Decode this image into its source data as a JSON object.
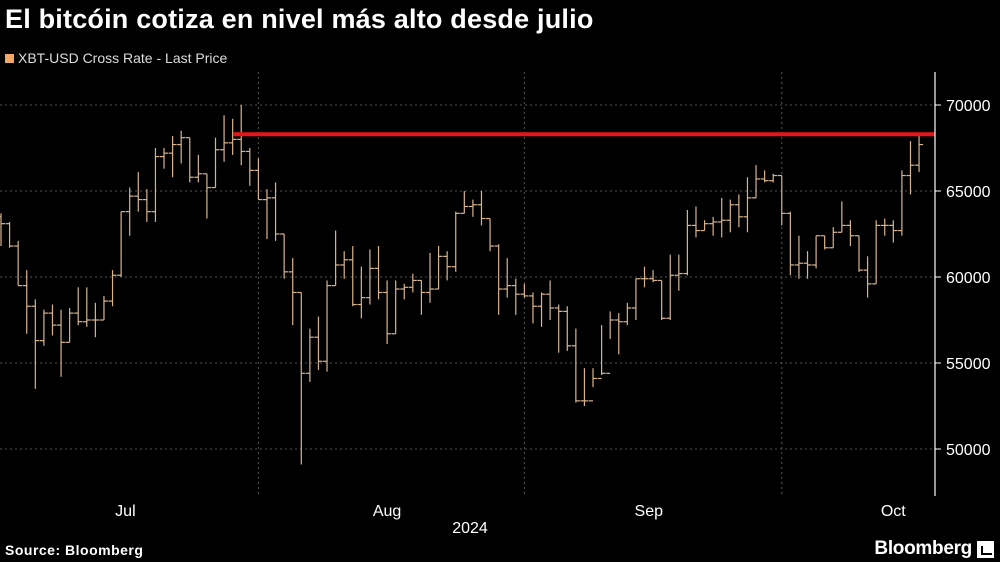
{
  "title": "El bitcóin cotiza en nivel más alto desde julio",
  "source": "Source: Bloomberg",
  "logo": "Bloomberg",
  "chart_data": {
    "type": "ohlc",
    "title": "El bitcóin cotiza en nivel más alto desde julio",
    "legend": [
      {
        "name": "XBT-USD Cross Rate - Last Price",
        "color": "#f0a868"
      }
    ],
    "legend_placement": "top-left",
    "bar_color": "#d8b48c",
    "xlabel": "2024",
    "x_ticks": [
      "Jul",
      "Aug",
      "Sep",
      "Oct"
    ],
    "y_ticks": [
      50000,
      55000,
      60000,
      65000,
      70000
    ],
    "y_axis_side": "right",
    "grid": true,
    "reference_line": {
      "value": 68300,
      "from": "2024-07-29",
      "color": "#e8141b"
    },
    "bars_columns": [
      "date",
      "open",
      "high",
      "low",
      "close"
    ],
    "bars": [
      [
        "2024-07-02",
        63500,
        63700,
        61800,
        63100
      ],
      [
        "2024-07-03",
        63100,
        63200,
        61700,
        61800
      ],
      [
        "2024-07-04",
        61800,
        62100,
        59500,
        59500
      ],
      [
        "2024-07-05",
        59500,
        60400,
        56700,
        58300
      ],
      [
        "2024-07-06",
        58300,
        58700,
        53500,
        56300
      ],
      [
        "2024-07-07",
        56300,
        58100,
        56000,
        57900
      ],
      [
        "2024-07-08",
        57900,
        58400,
        56600,
        57200
      ],
      [
        "2024-07-09",
        57200,
        58100,
        54200,
        56200
      ],
      [
        "2024-07-10",
        56200,
        58200,
        56200,
        57900
      ],
      [
        "2024-07-11",
        57900,
        59400,
        57200,
        57400
      ],
      [
        "2024-07-12",
        57400,
        59400,
        57100,
        57500
      ],
      [
        "2024-07-13",
        57500,
        58500,
        56500,
        57500
      ],
      [
        "2024-07-14",
        57500,
        58900,
        57500,
        58600
      ],
      [
        "2024-07-15",
        58600,
        60400,
        58300,
        60100
      ],
      [
        "2024-07-16",
        60100,
        63800,
        60000,
        63800
      ],
      [
        "2024-07-17",
        63800,
        65200,
        62400,
        64700
      ],
      [
        "2024-07-18",
        64700,
        66100,
        63800,
        64500
      ],
      [
        "2024-07-19",
        64500,
        65100,
        63200,
        63800
      ],
      [
        "2024-07-20",
        63800,
        67500,
        63200,
        67000
      ],
      [
        "2024-07-21",
        67000,
        67500,
        66300,
        67200
      ],
      [
        "2024-07-22",
        67200,
        68200,
        65800,
        67700
      ],
      [
        "2024-07-23",
        67700,
        68500,
        66600,
        68100
      ],
      [
        "2024-07-24",
        68100,
        68100,
        65500,
        65800
      ],
      [
        "2024-07-25",
        65800,
        67100,
        65500,
        66000
      ],
      [
        "2024-07-26",
        66000,
        66000,
        63400,
        65200
      ],
      [
        "2024-07-27",
        65200,
        68100,
        65200,
        67400
      ],
      [
        "2024-07-28",
        67400,
        69400,
        66700,
        67800
      ],
      [
        "2024-07-29",
        67800,
        69200,
        67100,
        68000
      ],
      [
        "2024-07-30",
        68000,
        70000,
        66500,
        67300
      ],
      [
        "2024-07-31",
        67300,
        67500,
        65300,
        66200
      ],
      [
        "2024-08-01",
        66200,
        66900,
        64500,
        64500
      ],
      [
        "2024-08-02",
        64500,
        65100,
        62200,
        64600
      ],
      [
        "2024-08-03",
        64600,
        65500,
        62100,
        62500
      ],
      [
        "2024-08-04",
        62500,
        62500,
        59900,
        60300
      ],
      [
        "2024-08-05",
        60300,
        61100,
        57200,
        59100
      ],
      [
        "2024-08-06",
        59100,
        59100,
        49100,
        54400
      ],
      [
        "2024-08-07",
        54400,
        57000,
        53900,
        56500
      ],
      [
        "2024-08-08",
        56500,
        57700,
        54600,
        55100
      ],
      [
        "2024-08-09",
        55100,
        59800,
        54500,
        59500
      ],
      [
        "2024-08-10",
        59500,
        62700,
        59500,
        60700
      ],
      [
        "2024-08-11",
        60700,
        61500,
        59900,
        61000
      ],
      [
        "2024-08-12",
        61000,
        61800,
        58300,
        58400
      ],
      [
        "2024-08-13",
        58400,
        60600,
        57600,
        58800
      ],
      [
        "2024-08-14",
        58800,
        61600,
        58400,
        60500
      ],
      [
        "2024-08-15",
        60500,
        61800,
        58700,
        59100
      ],
      [
        "2024-08-16",
        59100,
        59800,
        56100,
        56700
      ],
      [
        "2024-08-17",
        56700,
        59800,
        56700,
        59300
      ],
      [
        "2024-08-18",
        59300,
        59600,
        58700,
        59400
      ],
      [
        "2024-08-19",
        59400,
        60200,
        59100,
        59800
      ],
      [
        "2024-08-20",
        59800,
        59800,
        57800,
        59100
      ],
      [
        "2024-08-21",
        59100,
        61400,
        58500,
        59300
      ],
      [
        "2024-08-22",
        59300,
        61800,
        59300,
        61200
      ],
      [
        "2024-08-23",
        61200,
        61500,
        59800,
        60600
      ],
      [
        "2024-08-24",
        60600,
        63800,
        60300,
        63700
      ],
      [
        "2024-08-25",
        63700,
        65000,
        63700,
        64100
      ],
      [
        "2024-08-26",
        64100,
        64500,
        63500,
        64200
      ],
      [
        "2024-08-27",
        64200,
        65000,
        63000,
        63400
      ],
      [
        "2024-08-28",
        63400,
        63400,
        61500,
        61800
      ],
      [
        "2024-08-29",
        61800,
        61900,
        57800,
        59300
      ],
      [
        "2024-08-30",
        59300,
        61100,
        58800,
        59500
      ],
      [
        "2024-08-31",
        59500,
        59900,
        57800,
        59000
      ],
      [
        "2024-09-01",
        59000,
        59600,
        58800,
        58900
      ],
      [
        "2024-09-02",
        58900,
        59100,
        57300,
        58300
      ],
      [
        "2024-09-03",
        58300,
        59100,
        57100,
        59000
      ],
      [
        "2024-09-04",
        59000,
        59800,
        57500,
        58200
      ],
      [
        "2024-09-05",
        58200,
        58400,
        55600,
        58000
      ],
      [
        "2024-09-06",
        58000,
        58300,
        55700,
        56000
      ],
      [
        "2024-09-07",
        56000,
        57000,
        52700,
        52800
      ],
      [
        "2024-09-08",
        52800,
        54700,
        52500,
        52800
      ],
      [
        "2024-09-09",
        52800,
        54700,
        53600,
        54100
      ],
      [
        "2024-09-10",
        54100,
        57200,
        54300,
        54400
      ],
      [
        "2024-09-11",
        54400,
        58000,
        56400,
        57500
      ],
      [
        "2024-09-12",
        57500,
        57900,
        55500,
        57400
      ],
      [
        "2024-09-13",
        57400,
        58500,
        57200,
        58200
      ],
      [
        "2024-09-14",
        58200,
        59900,
        57500,
        59900
      ],
      [
        "2024-09-15",
        59900,
        60600,
        59400,
        59900
      ],
      [
        "2024-09-16",
        59900,
        60400,
        59700,
        59800
      ],
      [
        "2024-09-17",
        59800,
        59800,
        57500,
        57600
      ],
      [
        "2024-09-18",
        57600,
        61300,
        57500,
        60100
      ],
      [
        "2024-09-19",
        60100,
        61300,
        59200,
        60200
      ],
      [
        "2024-09-20",
        60200,
        63900,
        60100,
        63000
      ],
      [
        "2024-09-21",
        63000,
        64100,
        62300,
        62700
      ],
      [
        "2024-09-22",
        62700,
        63300,
        62700,
        63100
      ],
      [
        "2024-09-23",
        63100,
        63500,
        62400,
        63200
      ],
      [
        "2024-09-24",
        63200,
        64600,
        62300,
        63300
      ],
      [
        "2024-09-25",
        63300,
        64500,
        62600,
        64200
      ],
      [
        "2024-09-26",
        64200,
        64800,
        62900,
        63500
      ],
      [
        "2024-09-27",
        63500,
        65800,
        62600,
        64600
      ],
      [
        "2024-09-28",
        64600,
        66500,
        64600,
        65700
      ],
      [
        "2024-09-29",
        65700,
        66200,
        65500,
        65600
      ],
      [
        "2024-09-30",
        65600,
        66000,
        65500,
        65900
      ],
      [
        "2024-10-01",
        65900,
        65900,
        63000,
        63700
      ],
      [
        "2024-10-02",
        63700,
        63800,
        60100,
        60700
      ],
      [
        "2024-10-03",
        60700,
        62400,
        59900,
        60800
      ],
      [
        "2024-10-04",
        60800,
        61500,
        59900,
        60700
      ],
      [
        "2024-10-05",
        60700,
        62400,
        60500,
        62400
      ],
      [
        "2024-10-06",
        62400,
        62400,
        61600,
        61700
      ],
      [
        "2024-10-07",
        61700,
        62900,
        61700,
        62600
      ],
      [
        "2024-10-08",
        62600,
        64400,
        62600,
        63000
      ],
      [
        "2024-10-09",
        63000,
        63300,
        61800,
        62400
      ],
      [
        "2024-10-10",
        62400,
        62400,
        60300,
        60400
      ],
      [
        "2024-10-11",
        60400,
        61200,
        58800,
        59600
      ],
      [
        "2024-10-12",
        59600,
        63300,
        59600,
        63000
      ],
      [
        "2024-10-13",
        63000,
        63400,
        62400,
        63000
      ],
      [
        "2024-10-14",
        63000,
        63300,
        62000,
        62700
      ],
      [
        "2024-10-15",
        62700,
        66200,
        62400,
        65900
      ],
      [
        "2024-10-16",
        65900,
        67900,
        64800,
        66500
      ],
      [
        "2024-10-17",
        66500,
        68200,
        66100,
        67700
      ]
    ]
  }
}
